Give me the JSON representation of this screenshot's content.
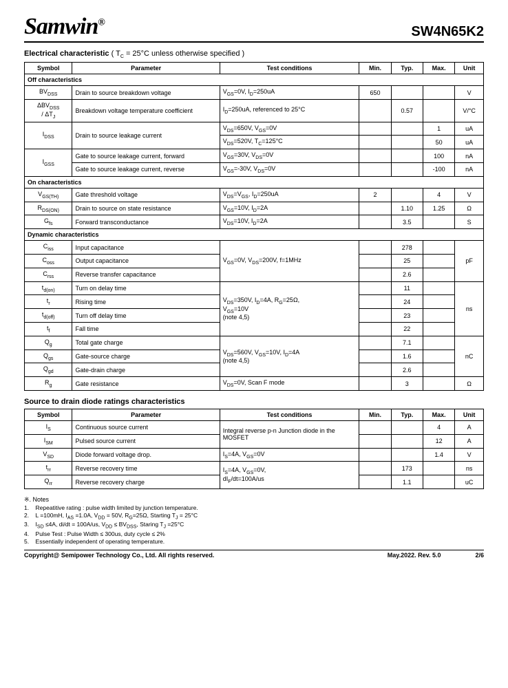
{
  "header": {
    "brand": "Samwin",
    "reg": "®",
    "part": "SW4N65K2"
  },
  "elec_title": "Electrical characteristic",
  "elec_title_paren": " ( T_C = 25°C unless otherwise specified )",
  "diode_title": "Source to drain diode ratings characteristics",
  "cols": {
    "symbol": "Symbol",
    "param": "Parameter",
    "test": "Test conditions",
    "min": "Min.",
    "typ": "Typ.",
    "max": "Max.",
    "unit": "Unit"
  },
  "subheads": {
    "off": "Off characteristics",
    "on": "On characteristics",
    "dyn": "Dynamic characteristics"
  },
  "off_rows": [
    {
      "sym": "BV<sub>DSS</sub>",
      "param": "Drain to source breakdown voltage",
      "test": "V<sub>GS</sub>=0V, I<sub>D</sub>=250uA",
      "min": "650",
      "typ": "",
      "max": "",
      "unit": "V"
    },
    {
      "sym": "ΔBV<sub>DSS</sub><br>/ ΔT<sub>J</sub>",
      "param": "Breakdown voltage temperature coefficient",
      "test": "I<sub>D</sub>=250uA, referenced to 25°C",
      "min": "",
      "typ": "0.57",
      "max": "",
      "unit": "V/°C"
    }
  ],
  "idss": {
    "sym": "I<sub>DSS</sub>",
    "param": "Drain to source leakage current",
    "r1": {
      "test": "V<sub>DS</sub>=650V, V<sub>GS</sub>=0V",
      "min": "",
      "typ": "",
      "max": "1",
      "unit": "uA"
    },
    "r2": {
      "test": "V<sub>DS</sub>=520V, T<sub>C</sub>=125°C",
      "min": "",
      "typ": "",
      "max": "50",
      "unit": "uA"
    }
  },
  "igss": {
    "sym": "I<sub>GSS</sub>",
    "r1": {
      "param": "Gate to source leakage current, forward",
      "test": "V<sub>GS</sub>=30V, V<sub>DS</sub>=0V",
      "min": "",
      "typ": "",
      "max": "100",
      "unit": "nA"
    },
    "r2": {
      "param": "Gate to source leakage current, reverse",
      "test": "V<sub>GS</sub>=-30V, V<sub>DS</sub>=0V",
      "min": "",
      "typ": "",
      "max": "-100",
      "unit": "nA"
    }
  },
  "on_rows": [
    {
      "sym": "V<sub>GS(TH)</sub>",
      "param": "Gate threshold voltage",
      "test": "V<sub>DS</sub>=V<sub>GS</sub>, I<sub>D</sub>=250uA",
      "min": "2",
      "typ": "",
      "max": "4",
      "unit": "V"
    },
    {
      "sym": "R<sub>DS(ON)</sub>",
      "param": "Drain to source on state resistance",
      "test": "V<sub>GS</sub>=10V, I<sub>D</sub>=2A",
      "min": "",
      "typ": "1.10",
      "max": "1.25",
      "unit": "Ω"
    },
    {
      "sym": "G<sub>fs</sub>",
      "param": "Forward transconductance",
      "test": "V<sub>DS</sub>=10V, I<sub>D</sub>=2A",
      "min": "",
      "typ": "3.5",
      "max": "",
      "unit": "S"
    }
  ],
  "cap_group": {
    "test": "V<sub>GS</sub>=0V, V<sub>DS</sub>=200V, f=1MHz",
    "unit": "pF",
    "rows": [
      {
        "sym": "C<sub>iss</sub>",
        "param": "Input capacitance",
        "typ": "278"
      },
      {
        "sym": "C<sub>oss</sub>",
        "param": "Output capacitance",
        "typ": "25"
      },
      {
        "sym": "C<sub>rss</sub>",
        "param": "Reverse transfer capacitance",
        "typ": "2.6"
      }
    ]
  },
  "time_group": {
    "test": "V<sub>DS</sub>=350V, I<sub>D</sub>=4A, R<sub>G</sub>=25Ω,<br>V<sub>GS</sub>=10V<br>(note 4,5)",
    "unit": "ns",
    "rows": [
      {
        "sym": "t<sub>d(on)</sub>",
        "param": "Turn on delay time",
        "typ": "11"
      },
      {
        "sym": "t<sub>r</sub>",
        "param": "Rising time",
        "typ": "24"
      },
      {
        "sym": "t<sub>d(off)</sub>",
        "param": "Turn off delay time",
        "typ": "23"
      },
      {
        "sym": "t<sub>f</sub>",
        "param": "Fall time",
        "typ": "22"
      }
    ]
  },
  "charge_group": {
    "test": "V<sub>DS</sub>=560V, V<sub>GS</sub>=10V, I<sub>D</sub>=4A<br>(note 4,5)",
    "unit": "nC",
    "rows": [
      {
        "sym": "Q<sub>g</sub>",
        "param": "Total gate charge",
        "typ": "7.1"
      },
      {
        "sym": "Q<sub>gs</sub>",
        "param": "Gate-source charge",
        "typ": "1.6"
      },
      {
        "sym": "Q<sub>gd</sub>",
        "param": "Gate-drain charge",
        "typ": "2.6"
      }
    ]
  },
  "rg_row": {
    "sym": "R<sub>g</sub>",
    "param": "Gate resistance",
    "test": "V<sub>DS</sub>=0V, Scan F mode",
    "min": "",
    "typ": "3",
    "max": "",
    "unit": "Ω"
  },
  "diode": {
    "src_group": {
      "test": "Integral reverse p-n Junction diode in the MOSFET",
      "rows": [
        {
          "sym": "I<sub>S</sub>",
          "param": "Continuous source current",
          "min": "",
          "typ": "",
          "max": "4",
          "unit": "A"
        },
        {
          "sym": "I<sub>SM</sub>",
          "param": "Pulsed source current",
          "min": "",
          "typ": "",
          "max": "12",
          "unit": "A"
        }
      ]
    },
    "vsd": {
      "sym": "V<sub>SD</sub>",
      "param": "Diode forward voltage drop.",
      "test": "I<sub>S</sub>=4A, V<sub>GS</sub>=0V",
      "min": "",
      "typ": "",
      "max": "1.4",
      "unit": "V"
    },
    "rr_group": {
      "test": "I<sub>S</sub>=4A, V<sub>GS</sub>=0V,<br>dI<sub>F</sub>/dt=100A/us",
      "rows": [
        {
          "sym": "t<sub>rr</sub>",
          "param": "Reverse recovery time",
          "min": "",
          "typ": "173",
          "max": "",
          "unit": "ns"
        },
        {
          "sym": "Q<sub>rr</sub>",
          "param": "Reverse recovery charge",
          "min": "",
          "typ": "1.1",
          "max": "",
          "unit": "uC"
        }
      ]
    }
  },
  "notes": {
    "hdr": "※. Notes",
    "items": [
      "Repeatitive rating : pulse width limited by junction temperature.",
      "L =100mH, I<sub>AS</sub> =1.0A, V<sub>DD</sub> = 50V, R<sub>G</sub>=25Ω, Starting T<sub>J</sub> = 25°C",
      "I<sub>SD</sub> ≤4A, di/dt = 100A/us, V<sub>DD</sub> ≤ BV<sub>DSS</sub>, Staring T<sub>J</sub> =25°C",
      "Pulse Test : Pulse Width ≤ 300us, duty cycle ≤ 2%",
      "Essentially independent of operating temperature."
    ]
  },
  "footer": {
    "copyright": "Copyright@ Semipower Technology Co., Ltd. All rights reserved.",
    "rev": "May.2022. Rev. 5.0",
    "page": "2/6"
  }
}
